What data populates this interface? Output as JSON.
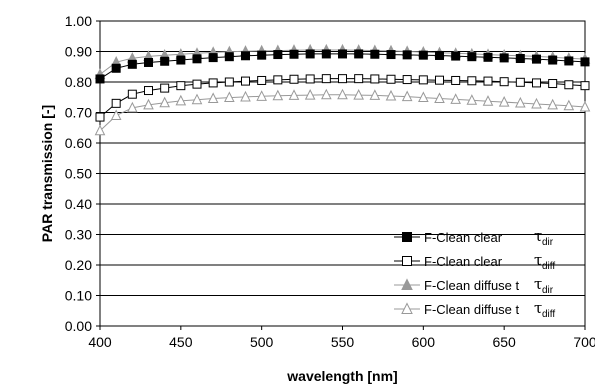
{
  "chart_data": {
    "type": "line",
    "xlabel": "wavelength [nm]",
    "ylabel": "PAR transmission [-]",
    "xlim": [
      400,
      700
    ],
    "ylim": [
      0,
      1
    ],
    "xticks": [
      "400",
      "450",
      "500",
      "550",
      "600",
      "650",
      "700"
    ],
    "yticks": [
      "0.00",
      "0.10",
      "0.20",
      "0.30",
      "0.40",
      "0.50",
      "0.60",
      "0.70",
      "0.80",
      "0.90",
      "1.00"
    ],
    "grid": "horizontal",
    "legend_position": "bottom-right",
    "x": [
      400,
      410,
      420,
      430,
      440,
      450,
      460,
      470,
      480,
      490,
      500,
      510,
      520,
      530,
      540,
      550,
      560,
      570,
      580,
      590,
      600,
      610,
      620,
      630,
      640,
      650,
      660,
      670,
      680,
      690,
      700
    ],
    "series": [
      {
        "name": "F-Clean clear",
        "symbol": "τ",
        "subscript": "dir",
        "marker": "filled-square",
        "color": "#000000",
        "values": [
          0.81,
          0.845,
          0.858,
          0.864,
          0.868,
          0.872,
          0.876,
          0.88,
          0.883,
          0.886,
          0.888,
          0.89,
          0.891,
          0.892,
          0.892,
          0.892,
          0.892,
          0.891,
          0.89,
          0.889,
          0.888,
          0.887,
          0.885,
          0.883,
          0.881,
          0.879,
          0.877,
          0.875,
          0.872,
          0.869,
          0.866
        ]
      },
      {
        "name": "F-Clean clear",
        "symbol": "τ",
        "subscript": "diff",
        "marker": "open-square",
        "color": "#000000",
        "values": [
          0.685,
          0.73,
          0.76,
          0.772,
          0.78,
          0.788,
          0.793,
          0.797,
          0.8,
          0.803,
          0.805,
          0.807,
          0.809,
          0.81,
          0.811,
          0.811,
          0.811,
          0.81,
          0.809,
          0.808,
          0.807,
          0.806,
          0.805,
          0.804,
          0.803,
          0.801,
          0.799,
          0.797,
          0.795,
          0.791,
          0.788
        ]
      },
      {
        "name": "F-Clean diffuse t",
        "symbol": "τ",
        "subscript": "dir",
        "marker": "filled-triangle",
        "color": "#999999",
        "values": [
          0.825,
          0.865,
          0.878,
          0.884,
          0.888,
          0.891,
          0.894,
          0.897,
          0.899,
          0.901,
          0.902,
          0.903,
          0.904,
          0.905,
          0.905,
          0.905,
          0.904,
          0.903,
          0.902,
          0.9,
          0.898,
          0.896,
          0.894,
          0.892,
          0.89,
          0.888,
          0.886,
          0.884,
          0.881,
          0.878,
          0.875
        ]
      },
      {
        "name": "F-Clean diffuse t",
        "symbol": "τ",
        "subscript": "diff",
        "marker": "open-triangle",
        "color": "#999999",
        "values": [
          0.64,
          0.69,
          0.715,
          0.725,
          0.732,
          0.738,
          0.742,
          0.746,
          0.749,
          0.751,
          0.753,
          0.755,
          0.756,
          0.757,
          0.758,
          0.758,
          0.757,
          0.756,
          0.754,
          0.752,
          0.749,
          0.746,
          0.743,
          0.74,
          0.737,
          0.734,
          0.731,
          0.728,
          0.725,
          0.722,
          0.718
        ]
      }
    ]
  }
}
